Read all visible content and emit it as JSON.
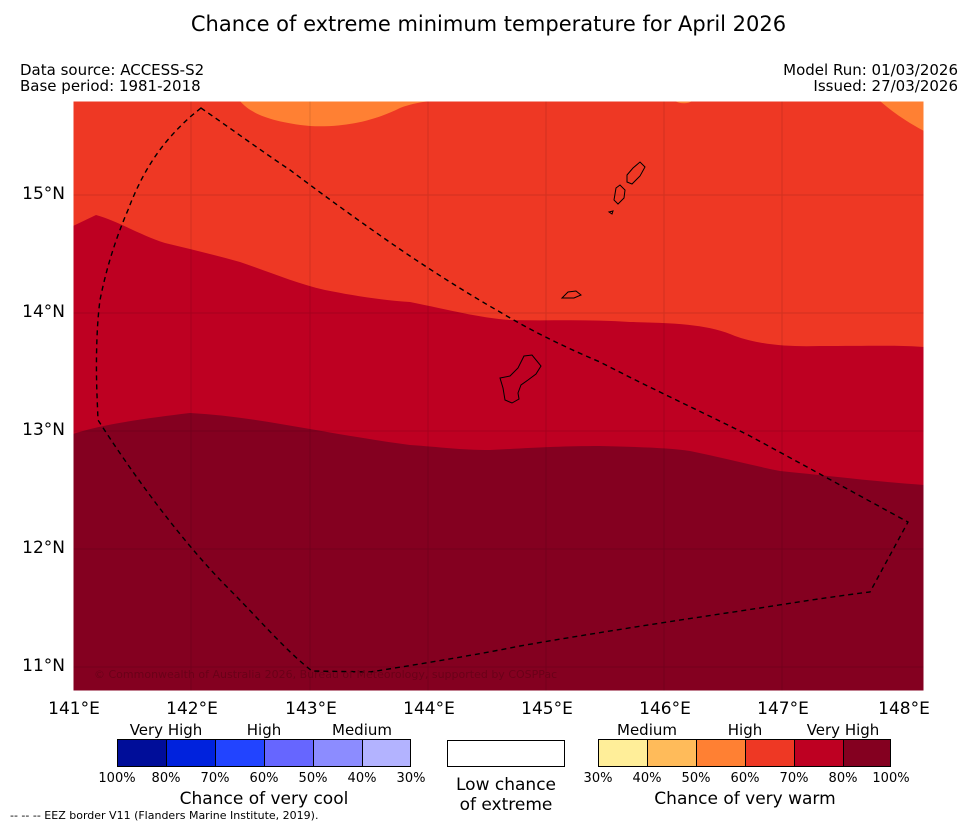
{
  "title": "Chance of extreme minimum temperature for April 2026",
  "meta": {
    "data_source": "Data source: ACCESS-S2",
    "base_period": "Base period: 1981-2018",
    "model_run": "Model Run: 01/03/2026",
    "issued": "Issued: 27/03/2026"
  },
  "map": {
    "lat_ticks": [
      "15°N",
      "14°N",
      "13°N",
      "12°N",
      "11°N"
    ],
    "lon_ticks": [
      "141°E",
      "142°E",
      "143°E",
      "144°E",
      "145°E",
      "146°E",
      "147°E",
      "148°E"
    ],
    "copyright": "© Commonwealth of Australia 2026, Bureau of Meteorology, supported by COSPPac",
    "zones": {
      "very_high_100": "#840020",
      "very_high_80": "#be0022",
      "high_70": "#ee3824",
      "high_60": "#ff8033"
    }
  },
  "legend": {
    "cool": {
      "categories": [
        "Very High",
        "High",
        "Medium"
      ],
      "ticks": [
        "100%",
        "80%",
        "70%",
        "60%",
        "50%",
        "40%",
        "30%"
      ],
      "colors": [
        "#000d99",
        "#0022dd",
        "#2244ff",
        "#6666ff",
        "#8c8cff",
        "#b3b3ff"
      ],
      "title": "Chance of very cool"
    },
    "low": {
      "line1": "Low chance",
      "line2": "of extreme"
    },
    "warm": {
      "categories": [
        "Medium",
        "High",
        "Very High"
      ],
      "ticks": [
        "30%",
        "40%",
        "50%",
        "60%",
        "70%",
        "80%",
        "100%"
      ],
      "colors": [
        "#ffee99",
        "#ffbb5a",
        "#ff8033",
        "#ee3824",
        "#be0022",
        "#840020"
      ],
      "title": "Chance of very warm"
    }
  },
  "footer": "--  --  -- EEZ border V11 (Flanders Marine Institute, 2019)."
}
